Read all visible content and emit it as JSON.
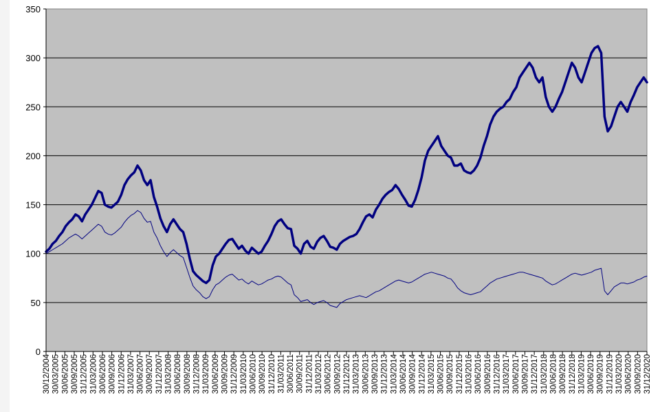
{
  "chart_data": {
    "type": "line",
    "title": "",
    "xlabel": "",
    "ylabel": "",
    "ylim": [
      0,
      350
    ],
    "y_ticks": [
      0,
      50,
      100,
      150,
      200,
      250,
      300,
      350
    ],
    "grid": "horizontal",
    "legend": "none",
    "plot_background": "#c0c0c0",
    "x_tick_labels": [
      "30/12/2004",
      "30/03/2005",
      "30/06/2005",
      "30/09/2005",
      "31/12/2005",
      "31/03/2006",
      "30/06/2006",
      "30/09/2006",
      "31/12/2006",
      "31/03/2007",
      "30/06/2007",
      "30/09/2007",
      "31/12/2007",
      "31/03/2008",
      "30/06/2008",
      "30/09/2008",
      "31/12/2008",
      "31/03/2009",
      "30/06/2009",
      "30/09/2009",
      "31/12/2009",
      "31/03/2010",
      "30/06/2010",
      "30/09/2010",
      "31/12/2010",
      "31/03/2011",
      "30/06/2011",
      "30/09/2011",
      "31/12/2011",
      "31/03/2012",
      "30/06/2012",
      "30/09/2012",
      "31/12/2012",
      "31/03/2013",
      "30/06/2013",
      "30/09/2013",
      "31/12/2013",
      "31/03/2014",
      "30/06/2014",
      "30/09/2014",
      "31/12/2014",
      "31/03/2015",
      "30/06/2015",
      "30/09/2015",
      "31/12/2015",
      "31/03/2016",
      "30/06/2016",
      "30/09/2016",
      "31/12/2016",
      "31/03/2017",
      "30/06/2017",
      "30/09/2017",
      "31/12/2017",
      "31/03/2018",
      "30/06/2018",
      "30/09/2018",
      "31/12/2018",
      "31/03/2019",
      "30/06/2019",
      "30/09/2019",
      "31/12/2019",
      "31/03/2020",
      "30/06/2020",
      "30/09/2020",
      "31/12/2020"
    ],
    "series": [
      {
        "color": "#000080",
        "line_width": 3.5,
        "values": [
          102,
          105,
          110,
          113,
          118,
          122,
          128,
          132,
          135,
          140,
          138,
          133,
          140,
          145,
          150,
          157,
          164,
          162,
          150,
          148,
          147,
          150,
          153,
          160,
          170,
          176,
          180,
          183,
          190,
          185,
          175,
          170,
          175,
          158,
          148,
          136,
          128,
          122,
          130,
          135,
          130,
          125,
          122,
          110,
          95,
          82,
          78,
          75,
          72,
          70,
          73,
          88,
          97,
          100,
          105,
          110,
          114,
          115,
          110,
          105,
          108,
          103,
          100,
          106,
          103,
          100,
          102,
          108,
          113,
          120,
          128,
          133,
          135,
          130,
          126,
          125,
          108,
          105,
          100,
          110,
          113,
          107,
          105,
          112,
          116,
          118,
          113,
          107,
          106,
          104,
          110,
          113,
          115,
          117,
          118,
          120,
          125,
          132,
          138,
          140,
          137,
          145,
          150,
          156,
          160,
          163,
          165,
          170,
          166,
          160,
          155,
          149,
          148,
          155,
          165,
          178,
          195,
          205,
          210,
          215,
          220,
          210,
          205,
          200,
          198,
          190,
          190,
          192,
          185,
          183,
          182,
          185,
          190,
          198,
          210,
          220,
          232,
          240,
          245,
          248,
          250,
          255,
          258,
          265,
          270,
          280,
          285,
          290,
          295,
          290,
          280,
          275,
          280,
          260,
          250,
          245,
          250,
          258,
          265,
          275,
          285,
          295,
          290,
          280,
          275,
          285,
          295,
          305,
          310,
          312,
          305,
          240,
          225,
          230,
          240,
          250,
          255,
          250,
          245,
          255,
          262,
          270,
          275,
          280,
          275
        ]
      },
      {
        "color": "#000080",
        "line_width": 1,
        "values": [
          100,
          102,
          104,
          106,
          108,
          110,
          113,
          116,
          118,
          120,
          118,
          115,
          118,
          121,
          124,
          127,
          130,
          128,
          122,
          120,
          119,
          121,
          124,
          127,
          132,
          136,
          139,
          141,
          144,
          142,
          136,
          132,
          133,
          122,
          116,
          108,
          102,
          97,
          101,
          104,
          101,
          98,
          96,
          86,
          76,
          67,
          63,
          60,
          56,
          54,
          56,
          63,
          68,
          70,
          73,
          76,
          78,
          79,
          76,
          73,
          74,
          71,
          69,
          72,
          70,
          68,
          69,
          71,
          73,
          74,
          76,
          77,
          76,
          73,
          70,
          68,
          58,
          55,
          51,
          52,
          53,
          50,
          48,
          50,
          51,
          52,
          50,
          47,
          46,
          45,
          49,
          51,
          53,
          54,
          55,
          56,
          57,
          56,
          55,
          57,
          59,
          61,
          62,
          64,
          66,
          68,
          70,
          72,
          73,
          72,
          71,
          70,
          71,
          73,
          75,
          77,
          79,
          80,
          81,
          80,
          79,
          78,
          77,
          75,
          74,
          70,
          65,
          62,
          60,
          59,
          58,
          59,
          60,
          61,
          64,
          67,
          70,
          72,
          74,
          75,
          76,
          77,
          78,
          79,
          80,
          81,
          81,
          80,
          79,
          78,
          77,
          76,
          75,
          72,
          70,
          68,
          69,
          71,
          73,
          75,
          77,
          79,
          80,
          79,
          78,
          79,
          80,
          81,
          83,
          84,
          85,
          62,
          58,
          62,
          66,
          68,
          70,
          70,
          69,
          70,
          71,
          73,
          74,
          76,
          77
        ]
      }
    ]
  }
}
